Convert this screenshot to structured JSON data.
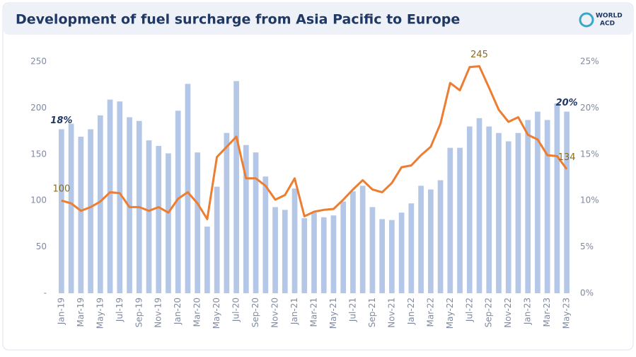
{
  "chart_data": {
    "type": "bar",
    "title": "Development of fuel surcharge from Asia Pacific to Europe",
    "logo": [
      "WORLD",
      "ACD"
    ],
    "categories": [
      "Jan-19",
      null,
      "Mar-19",
      null,
      "May-19",
      null,
      "Jul-19",
      null,
      "Sep-19",
      null,
      "Nov-19",
      null,
      "Jan-20",
      null,
      "Mar-20",
      null,
      "May-20",
      null,
      "Jul-20",
      null,
      "Sep-20",
      null,
      "Nov-20",
      null,
      "Jan-21",
      null,
      "Mar-21",
      null,
      "May-21",
      null,
      "Jul-21",
      null,
      "Sep-21",
      null,
      "Nov-21",
      null,
      "Jan-22",
      null,
      "Mar-22",
      null,
      "May-22",
      null,
      "Jul-22",
      null,
      "Sep-22",
      null,
      "Nov-22",
      null,
      "Jan-23",
      null,
      "Mar-23",
      null,
      "May-23"
    ],
    "series": [
      {
        "type": "bar",
        "axis": "y2",
        "color": "#b4c7e7",
        "values": [
          17.7,
          18.3,
          16.9,
          17.7,
          19.2,
          20.9,
          20.7,
          19.0,
          18.6,
          16.5,
          15.9,
          15.1,
          19.7,
          22.6,
          15.2,
          7.2,
          11.5,
          17.3,
          22.9,
          16.0,
          15.2,
          12.6,
          9.3,
          9.0,
          11.3,
          8.1,
          8.7,
          8.2,
          8.4,
          9.9,
          11.0,
          11.6,
          9.3,
          8.0,
          7.9,
          8.7,
          9.7,
          11.6,
          11.2,
          12.2,
          15.7,
          15.7,
          18.0,
          18.9,
          18.0,
          17.3,
          16.4,
          17.3,
          18.7,
          19.6,
          18.7,
          20.5,
          19.6
        ],
        "value_labels": [
          "18%",
          null,
          null,
          null,
          null,
          null,
          null,
          null,
          null,
          null,
          null,
          null,
          null,
          null,
          null,
          null,
          null,
          null,
          null,
          null,
          null,
          null,
          null,
          null,
          null,
          null,
          null,
          null,
          null,
          null,
          null,
          null,
          null,
          null,
          null,
          null,
          null,
          null,
          null,
          null,
          null,
          null,
          null,
          null,
          null,
          null,
          null,
          null,
          null,
          null,
          null,
          null,
          "20%"
        ]
      },
      {
        "type": "line",
        "axis": "y",
        "color": "#ed7d31",
        "values": [
          100,
          97,
          89,
          93,
          99,
          109,
          108,
          93,
          93,
          89,
          93,
          87,
          102,
          109,
          97,
          80,
          147,
          158,
          169,
          124,
          124,
          116,
          101,
          106,
          124,
          83,
          88,
          90,
          91,
          101,
          112,
          122,
          112,
          109,
          119,
          136,
          138,
          149,
          158,
          183,
          227,
          219,
          244,
          245,
          222,
          198,
          185,
          190,
          171,
          166,
          149,
          148,
          134
        ],
        "value_labels": [
          "100",
          null,
          null,
          null,
          null,
          null,
          null,
          null,
          null,
          null,
          null,
          null,
          null,
          null,
          null,
          null,
          null,
          null,
          null,
          null,
          null,
          null,
          null,
          null,
          null,
          null,
          null,
          null,
          null,
          null,
          null,
          null,
          null,
          null,
          null,
          null,
          null,
          null,
          null,
          null,
          null,
          null,
          null,
          "245",
          null,
          null,
          null,
          null,
          null,
          null,
          null,
          null,
          "134"
        ]
      }
    ],
    "ylim": [
      0,
      250
    ],
    "yticks": [
      {
        "value": 0,
        "label": "-"
      },
      50,
      100,
      150,
      200,
      250
    ],
    "y2lim": [
      0,
      25
    ],
    "y2ticks": [
      {
        "value": 0,
        "label": "0%"
      },
      {
        "value": 5,
        "label": "5%"
      },
      {
        "value": 10,
        "label": "10%"
      },
      {
        "value": 15,
        "label": "15%"
      },
      {
        "value": 20,
        "label": "20%"
      },
      {
        "value": 25,
        "label": "25%"
      }
    ],
    "grid": false
  }
}
